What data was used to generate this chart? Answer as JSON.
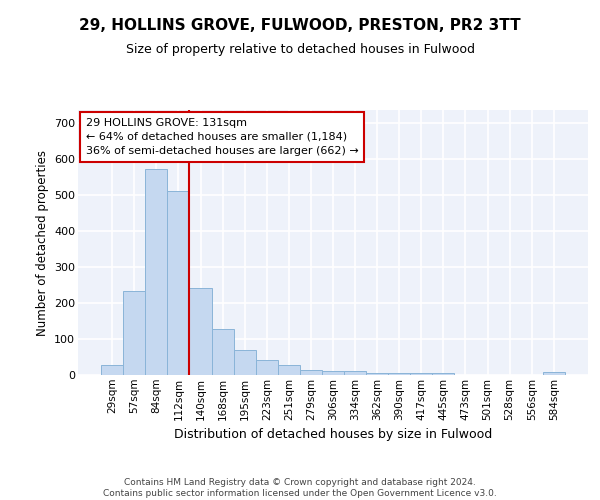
{
  "title1": "29, HOLLINS GROVE, FULWOOD, PRESTON, PR2 3TT",
  "title2": "Size of property relative to detached houses in Fulwood",
  "xlabel": "Distribution of detached houses by size in Fulwood",
  "ylabel": "Number of detached properties",
  "categories": [
    "29sqm",
    "57sqm",
    "84sqm",
    "112sqm",
    "140sqm",
    "168sqm",
    "195sqm",
    "223sqm",
    "251sqm",
    "279sqm",
    "306sqm",
    "334sqm",
    "362sqm",
    "390sqm",
    "417sqm",
    "445sqm",
    "473sqm",
    "501sqm",
    "528sqm",
    "556sqm",
    "584sqm"
  ],
  "values": [
    28,
    232,
    570,
    510,
    242,
    127,
    70,
    42,
    27,
    15,
    10,
    10,
    5,
    5,
    5,
    5,
    0,
    0,
    0,
    0,
    7
  ],
  "bar_color": "#c5d8f0",
  "bar_edge_color": "#8ab4d8",
  "vline_color": "#cc0000",
  "annotation_text": "29 HOLLINS GROVE: 131sqm\n← 64% of detached houses are smaller (1,184)\n36% of semi-detached houses are larger (662) →",
  "annotation_box_color": "white",
  "annotation_box_edge": "#cc0000",
  "footer": "Contains HM Land Registry data © Crown copyright and database right 2024.\nContains public sector information licensed under the Open Government Licence v3.0.",
  "ylim": [
    0,
    735
  ],
  "yticks": [
    0,
    100,
    200,
    300,
    400,
    500,
    600,
    700
  ],
  "background_color": "#eef2fa",
  "grid_color": "white",
  "title1_fontsize": 11,
  "title2_fontsize": 9
}
